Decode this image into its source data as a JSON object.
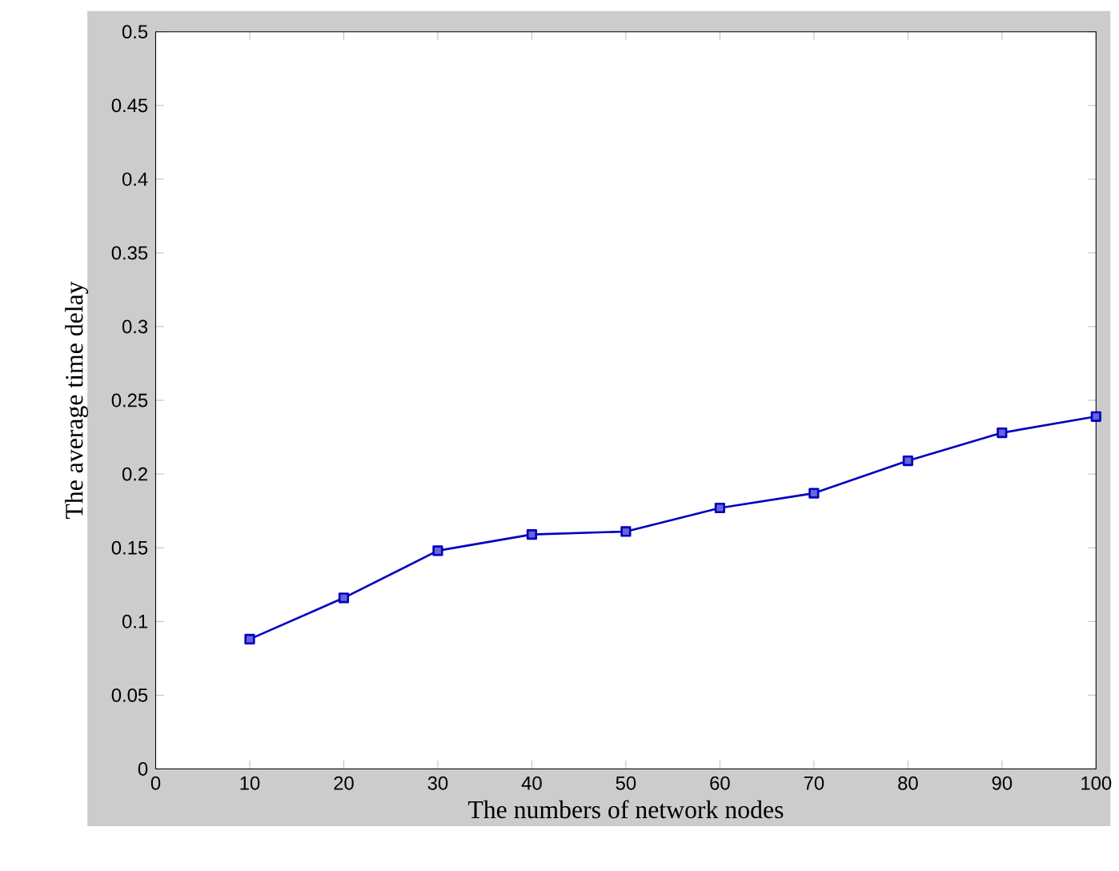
{
  "chart_data": {
    "type": "line",
    "xlabel": "The numbers of network nodes",
    "ylabel": "The average time delay",
    "x": [
      10,
      20,
      30,
      40,
      50,
      60,
      70,
      80,
      90,
      100
    ],
    "series": [
      {
        "color": "#0000c0",
        "values": [
          0.088,
          0.116,
          0.148,
          0.159,
          0.161,
          0.177,
          0.187,
          0.209,
          0.228,
          0.239
        ]
      }
    ],
    "xlim": [
      0,
      100
    ],
    "xticks": [
      0,
      10,
      20,
      30,
      40,
      50,
      60,
      70,
      80,
      90,
      100
    ],
    "ylim": [
      0,
      0.5
    ],
    "yticks": [
      0,
      0.05,
      0.1,
      0.15,
      0.2,
      0.25,
      0.3,
      0.35,
      0.4,
      0.45,
      0.5
    ],
    "marker": "square",
    "line_style": "solid"
  }
}
